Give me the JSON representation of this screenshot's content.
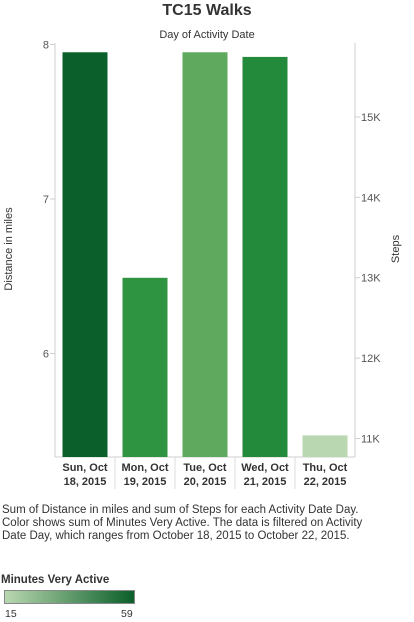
{
  "chart_data": {
    "type": "bar",
    "title": "TC15 Walks",
    "subtitle": "Day of Activity Date",
    "xlabel": "",
    "ylabel": "Distance in miles",
    "y2label": "Steps",
    "categories": [
      [
        "Sun, Oct",
        "18, 2015"
      ],
      [
        "Mon, Oct",
        "19, 2015"
      ],
      [
        "Tue, Oct",
        "20, 2015"
      ],
      [
        "Wed, Oct",
        "21, 2015"
      ],
      [
        "Thu, Oct",
        "22, 2015"
      ]
    ],
    "series": [
      {
        "name": "Distance in miles",
        "axis": "left",
        "values": [
          7.95,
          6.49,
          7.95,
          7.92,
          5.47
        ]
      },
      {
        "name": "Steps",
        "axis": "right",
        "values": [
          15780,
          13000,
          15780,
          15720,
          11030
        ]
      }
    ],
    "color_values": [
      59,
      40,
      27,
      45,
      15
    ],
    "ylim": [
      5.33,
      8.01
    ],
    "y2lim": [
      10770,
      15920
    ],
    "yticks": [
      6,
      7,
      8
    ],
    "y2ticks": [
      11000,
      12000,
      13000,
      14000,
      15000
    ],
    "y2ticklabels": [
      "11K",
      "12K",
      "13K",
      "14K",
      "15K"
    ],
    "colors": [
      "#0b5f2a",
      "#2e9442",
      "#5ea95d",
      "#238a3c",
      "#b9d7b0"
    ],
    "grid": false,
    "caption": "Sum of Distance in miles and sum of Steps for each Activity Date Day.  Color shows sum of Minutes Very Active. The data is filtered on Activity Date Day, which ranges from October 18, 2015 to October 22, 2015.",
    "legend": {
      "title": "Minutes Very Active",
      "min_label": "15",
      "max_label": "59",
      "min_color": "#b9d7b0",
      "max_color": "#0b5f2a"
    }
  }
}
